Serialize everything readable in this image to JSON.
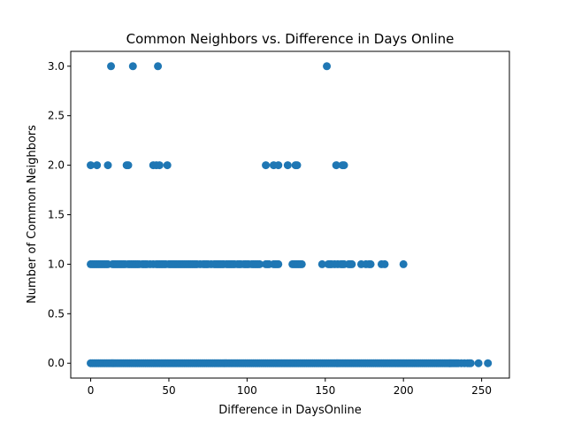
{
  "chart_data": {
    "type": "scatter",
    "title": "Common Neighbors vs. Difference in Days Online",
    "xlabel": "Difference in DaysOnline",
    "ylabel": "Number of Common Neighbors",
    "xlim": [
      -12.75,
      267.75
    ],
    "ylim": [
      -0.15,
      3.15
    ],
    "xticks": [
      0,
      50,
      100,
      150,
      200,
      250
    ],
    "xtick_labels": [
      "0",
      "50",
      "100",
      "150",
      "200",
      "250"
    ],
    "yticks": [
      0.0,
      0.5,
      1.0,
      1.5,
      2.0,
      2.5,
      3.0
    ],
    "ytick_labels": [
      "0.0",
      "0.5",
      "1.0",
      "1.5",
      "2.0",
      "2.5",
      "3.0"
    ],
    "grid": false,
    "legend": "none",
    "marker_color": "#1f77b4",
    "series": [
      {
        "points": {
          "y3": [
            13,
            27,
            43,
            151
          ],
          "y2": [
            0,
            4,
            11,
            23,
            24,
            40,
            42,
            44,
            49,
            112,
            117,
            120,
            126,
            131,
            132,
            157,
            161,
            162
          ],
          "y1": [
            0,
            1,
            2,
            3,
            4,
            5,
            6,
            7,
            8,
            9,
            10,
            11,
            14,
            15,
            16,
            17,
            18,
            19,
            20,
            21,
            22,
            24,
            25,
            26,
            27,
            28,
            29,
            30,
            31,
            33,
            34,
            35,
            36,
            38,
            40,
            42,
            43,
            44,
            45,
            46,
            47,
            48,
            50,
            51,
            52,
            53,
            54,
            55,
            56,
            57,
            58,
            59,
            60,
            61,
            62,
            63,
            64,
            65,
            66,
            67,
            68,
            70,
            72,
            73,
            74,
            75,
            77,
            79,
            80,
            81,
            82,
            83,
            84,
            85,
            87,
            88,
            89,
            90,
            91,
            92,
            94,
            95,
            96,
            98,
            99,
            100,
            101,
            103,
            104,
            105,
            106,
            107,
            108,
            112,
            113,
            114,
            117,
            118,
            119,
            120,
            129,
            130,
            131,
            132,
            133,
            134,
            135,
            148,
            152,
            153,
            154,
            156,
            158,
            160,
            161,
            162,
            165,
            166,
            167,
            173,
            176,
            178,
            179,
            186,
            188,
            200
          ],
          "y0_dense_range": [
            0,
            235
          ],
          "y0_extra": [
            237,
            239,
            241,
            242,
            243,
            248,
            254
          ]
        }
      }
    ]
  }
}
